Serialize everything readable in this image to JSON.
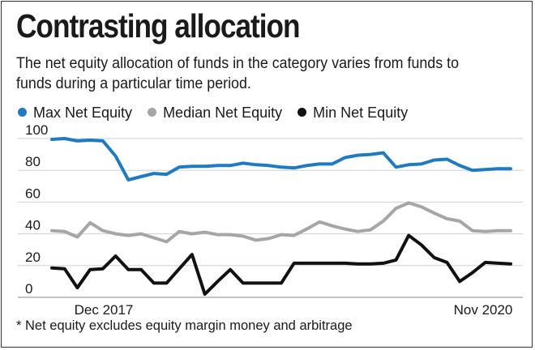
{
  "title": "Contrasting allocation",
  "subtitle": "The net equity allocation of funds in the category varies from funds to funds during a particular time period.",
  "footnote": "* Net equity excludes equity margin money and arbitrage",
  "chart_data": {
    "type": "line",
    "title": "Contrasting allocation",
    "xlabel": "",
    "ylabel": "",
    "ylim": [
      0,
      100
    ],
    "yticks": [
      0,
      20,
      40,
      60,
      80,
      100
    ],
    "x_tick_labels": [
      "Dec 2017",
      "Nov 2020"
    ],
    "grid": true,
    "n_points": 37,
    "series": [
      {
        "name": "Max Net Equity",
        "color": "#1f7bc1",
        "values": [
          99.5,
          100,
          98.5,
          99,
          98.5,
          89,
          74,
          76,
          78,
          77.5,
          82,
          82.5,
          82.5,
          83,
          83,
          84.5,
          83.5,
          83,
          82,
          81.5,
          83,
          84,
          84,
          88,
          89.5,
          90,
          91,
          82,
          83.5,
          84,
          86.5,
          87,
          83,
          80,
          80.5,
          81,
          81
        ]
      },
      {
        "name": "Median Net Equity",
        "color": "#a6a6a6",
        "values": [
          42,
          41.5,
          38,
          47,
          42,
          40,
          39,
          40,
          37.5,
          35,
          41.5,
          40,
          41,
          39.5,
          39.5,
          38.5,
          36,
          37,
          39.5,
          39,
          43,
          47.5,
          45,
          43,
          41.5,
          42.5,
          48,
          56,
          59.5,
          57,
          53,
          49.5,
          48,
          42,
          41.5,
          42,
          42
        ]
      },
      {
        "name": "Min Net Equity",
        "color": "#111111",
        "values": [
          18.5,
          18,
          6,
          17.5,
          18,
          26,
          17.5,
          17.5,
          9,
          9,
          18,
          27,
          2,
          10,
          17.5,
          9,
          9,
          9,
          9,
          21.5,
          21.5,
          21.5,
          21.5,
          21.5,
          21,
          21,
          21.5,
          23.5,
          39,
          33,
          25,
          22,
          10,
          15.5,
          22,
          21.5,
          21
        ]
      }
    ]
  }
}
